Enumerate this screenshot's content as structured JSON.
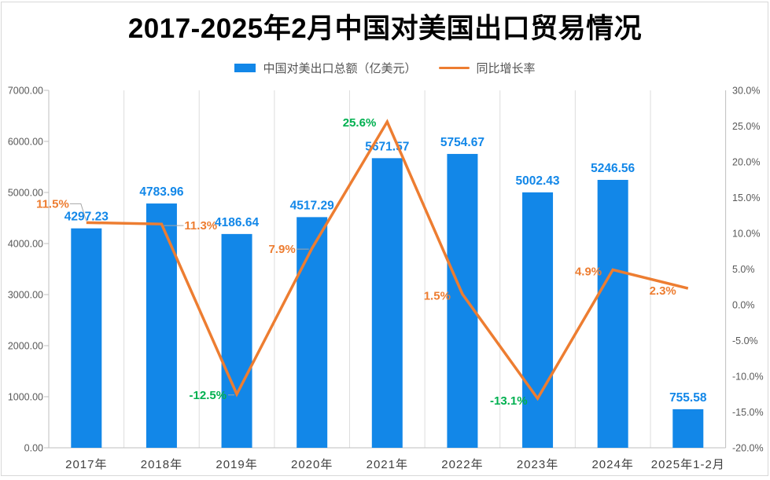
{
  "title": "2017-2025年2月中国对美国出口贸易情况",
  "legend": {
    "items": [
      {
        "label": "中国对美出口总额（亿美元）",
        "swatch": "bar-square"
      },
      {
        "label": "同比增长率",
        "swatch": "line-segment"
      }
    ]
  },
  "colors": {
    "bar": "#1287E8",
    "bar_label": "#1287E8",
    "line": "#ED7D31",
    "positive_label": "#ED7D31",
    "negative_label": "#00B050",
    "axis_text": "#595959",
    "x_axis_text": "#404040",
    "grid_line": "#DDDDDD",
    "axis_line": "#BFBFBF",
    "leader_line": "#A6A6A6",
    "frame": "#D8D8D8",
    "title_text": "#000000"
  },
  "chart_data": {
    "type": "bar",
    "combo": "bar+line",
    "title": "2017-2025年2月中国对美国出口贸易情况",
    "categories": [
      "2017年",
      "2018年",
      "2019年",
      "2020年",
      "2021年",
      "2022年",
      "2023年",
      "2024年",
      "2025年1-2月"
    ],
    "series": [
      {
        "name": "中国对美出口总额（亿美元）",
        "type": "bar",
        "axis": "left",
        "values": [
          4297.23,
          4783.96,
          4186.64,
          4517.29,
          5671.57,
          5754.67,
          5002.43,
          5246.56,
          755.58
        ],
        "data_labels": [
          "4297.23",
          "4783.96",
          "4186.64",
          "4517.29",
          "5671.57",
          "5754.67",
          "5002.43",
          "5246.56",
          "755.58"
        ]
      },
      {
        "name": "同比增长率",
        "type": "line",
        "axis": "right",
        "values": [
          11.5,
          11.3,
          -12.5,
          7.9,
          25.6,
          1.5,
          -13.1,
          4.9,
          2.3
        ],
        "data_labels": [
          "11.5%",
          "11.3%",
          "-12.5%",
          "7.9%",
          "25.6%",
          "1.5%",
          "-13.1%",
          "4.9%",
          "2.3%"
        ],
        "label_colors": [
          "#ED7D31",
          "#ED7D31",
          "#00B050",
          "#ED7D31",
          "#00B050",
          "#ED7D31",
          "#00B050",
          "#ED7D31",
          "#ED7D31"
        ]
      }
    ],
    "left_axis": {
      "min": 0,
      "max": 7000,
      "step": 1000,
      "tick_labels": [
        "0.00",
        "1000.00",
        "2000.00",
        "3000.00",
        "4000.00",
        "5000.00",
        "6000.00",
        "7000.00"
      ]
    },
    "right_axis": {
      "min": -20,
      "max": 30,
      "step": 5,
      "tick_labels": [
        "-20.0%",
        "-15.0%",
        "-10.0%",
        "-5.0%",
        "0.0%",
        "5.0%",
        "10.0%",
        "15.0%",
        "20.0%",
        "25.0%",
        "30.0%"
      ]
    },
    "grid": {
      "vertical_category_lines": true,
      "horizontal_lines": false
    },
    "legend_position": "top"
  }
}
